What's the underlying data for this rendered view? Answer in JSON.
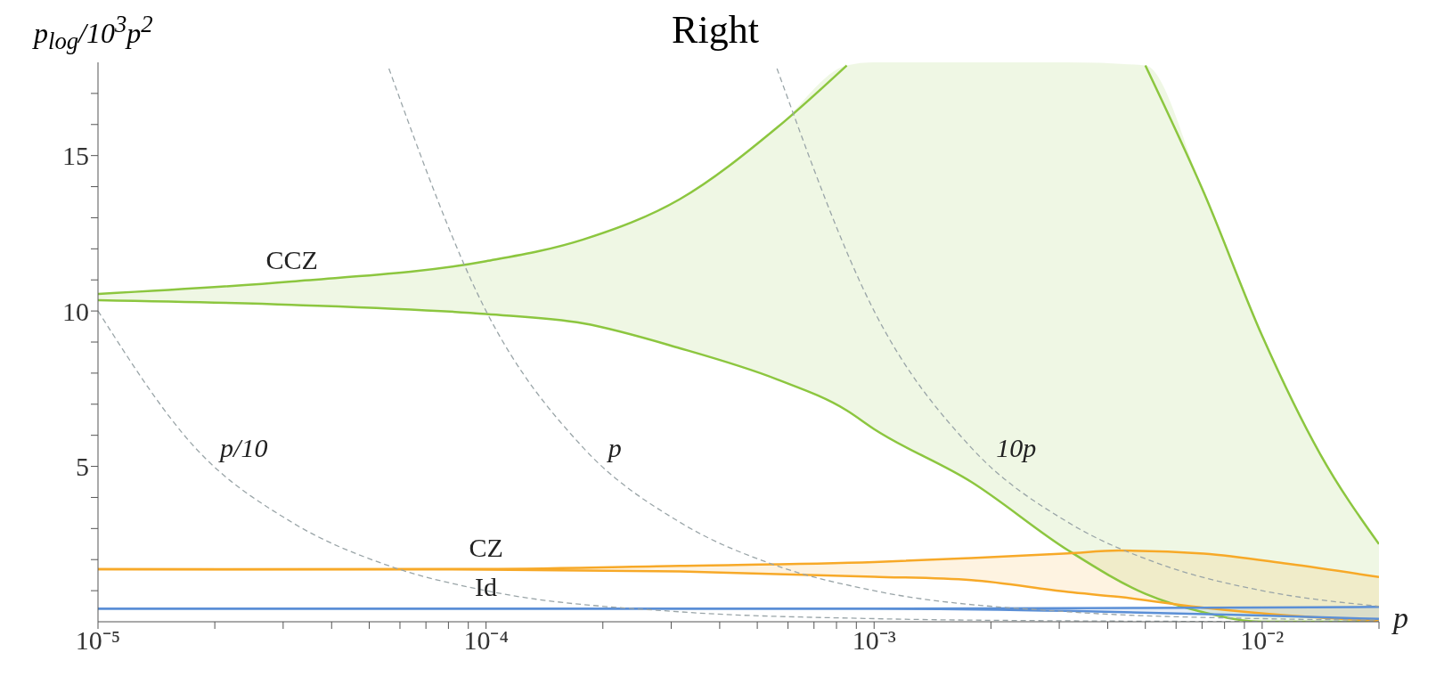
{
  "chart_data": {
    "type": "line",
    "title": "Right",
    "xlabel": "p",
    "ylabel": "p$_{log}$/10$^{3}$p$^{2}$",
    "log": "x",
    "xlim": [
      1e-05,
      0.02
    ],
    "ylim": [
      0,
      18
    ],
    "xticks": [
      {
        "value": 1e-05,
        "label": "10⁻⁵"
      },
      {
        "value": 2e-05,
        "label": null
      },
      {
        "value": 3e-05,
        "label": null
      },
      {
        "value": 4e-05,
        "label": null
      },
      {
        "value": 5e-05,
        "label": null
      },
      {
        "value": 6e-05,
        "label": null
      },
      {
        "value": 7e-05,
        "label": null
      },
      {
        "value": 8e-05,
        "label": null
      },
      {
        "value": 9e-05,
        "label": null
      },
      {
        "value": 0.0001,
        "label": "10⁻⁴"
      },
      {
        "value": 0.0002,
        "label": null
      },
      {
        "value": 0.0003,
        "label": null
      },
      {
        "value": 0.0004,
        "label": null
      },
      {
        "value": 0.0005,
        "label": null
      },
      {
        "value": 0.0006,
        "label": null
      },
      {
        "value": 0.0007,
        "label": null
      },
      {
        "value": 0.0008,
        "label": null
      },
      {
        "value": 0.0009,
        "label": null
      },
      {
        "value": 0.001,
        "label": "10⁻³"
      },
      {
        "value": 0.002,
        "label": null
      },
      {
        "value": 0.003,
        "label": null
      },
      {
        "value": 0.004,
        "label": null
      },
      {
        "value": 0.005,
        "label": null
      },
      {
        "value": 0.006,
        "label": null
      },
      {
        "value": 0.007,
        "label": null
      },
      {
        "value": 0.008,
        "label": null
      },
      {
        "value": 0.009,
        "label": null
      },
      {
        "value": 0.01,
        "label": "10⁻²"
      },
      {
        "value": 0.02,
        "label": null
      }
    ],
    "yticks": [
      {
        "value": 1,
        "label": null
      },
      {
        "value": 2,
        "label": null
      },
      {
        "value": 3,
        "label": null
      },
      {
        "value": 4,
        "label": null
      },
      5,
      {
        "value": 6,
        "label": null
      },
      {
        "value": 7,
        "label": null
      },
      {
        "value": 8,
        "label": null
      },
      {
        "value": 9,
        "label": null
      },
      10,
      {
        "value": 11,
        "label": null
      },
      {
        "value": 12,
        "label": null
      },
      {
        "value": 13,
        "label": null
      },
      {
        "value": 14,
        "label": null
      },
      15,
      {
        "value": 16,
        "label": null
      },
      {
        "value": 17,
        "label": null
      }
    ],
    "series": [
      {
        "name": "CCZ",
        "color": "#8cc63f",
        "x": [
          1e-05,
          3.16e-05,
          0.0001,
          0.000178,
          0.000316,
          0.000562,
          0.00085,
          0.001,
          0.00178,
          0.00316,
          0.005,
          0.00708,
          0.01,
          0.0141,
          0.02
        ],
        "values": [
          10.55,
          10.95,
          11.6,
          12.3,
          13.6,
          15.9,
          17.9,
          null,
          null,
          null,
          17.9,
          13.8,
          9.2,
          5.4,
          2.5
        ],
        "lower": [
          10.35,
          10.2,
          9.9,
          9.6,
          8.8,
          7.8,
          6.8,
          6.2,
          4.5,
          2.3,
          0.9,
          0.3,
          0,
          0,
          0
        ],
        "upper": [
          10.55,
          10.95,
          11.6,
          12.3,
          13.6,
          15.9,
          17.9,
          18,
          18,
          18,
          17.9,
          13.8,
          9.2,
          5.4,
          2.5
        ]
      },
      {
        "color": "#8cc63f",
        "x": [
          1e-05,
          3.16e-05,
          0.0001,
          0.000178,
          0.000316,
          0.000562,
          0.00085,
          0.001,
          0.00178,
          0.00316,
          0.005,
          0.00708,
          0.01,
          0.0141,
          0.02
        ],
        "values": [
          10.35,
          10.2,
          9.9,
          9.6,
          8.8,
          7.8,
          6.8,
          6.2,
          4.5,
          2.3,
          0.9,
          0.3,
          0,
          0,
          0
        ]
      },
      {
        "name": "CZ",
        "color": "#f7a928",
        "x": [
          1e-05,
          0.0001,
          0.000316,
          0.001,
          0.00178,
          0.00316,
          0.00427,
          0.00708,
          0.0117,
          0.02
        ],
        "values": [
          1.69,
          1.7,
          1.8,
          1.92,
          2.05,
          2.2,
          2.29,
          2.19,
          1.86,
          1.44
        ],
        "lower": [
          1.69,
          1.68,
          1.62,
          1.45,
          1.34,
          0.96,
          0.8,
          0.45,
          0.2,
          0.03
        ],
        "upper": [
          1.69,
          1.7,
          1.8,
          1.92,
          2.05,
          2.2,
          2.29,
          2.19,
          1.86,
          1.44
        ]
      },
      {
        "color": "#f7a928",
        "x": [
          1e-05,
          0.0001,
          0.000316,
          0.001,
          0.00178,
          0.00316,
          0.00427,
          0.00708,
          0.0117,
          0.02
        ],
        "values": [
          1.69,
          1.68,
          1.62,
          1.45,
          1.34,
          0.96,
          0.8,
          0.45,
          0.2,
          0.03
        ]
      },
      {
        "name": "Id",
        "color": "#5b8fd6",
        "x": [
          1e-05,
          0.0001,
          0.001,
          0.00316,
          0.01,
          0.02
        ],
        "values": [
          0.42,
          0.42,
          0.42,
          0.44,
          0.46,
          0.48
        ],
        "lower": [
          0.42,
          0.42,
          0.42,
          0.35,
          0.2,
          0.09
        ],
        "upper": [
          0.42,
          0.42,
          0.42,
          0.44,
          0.46,
          0.48
        ]
      },
      {
        "color": "#5b8fd6",
        "x": [
          1e-05,
          0.0001,
          0.001,
          0.00316,
          0.01,
          0.02
        ],
        "values": [
          0.42,
          0.42,
          0.42,
          0.35,
          0.2,
          0.09
        ]
      },
      {
        "name": "p/10",
        "color": "#9aa5a8",
        "line_style": "dashed",
        "x": [
          1e-05,
          1.78e-05,
          3.16e-05,
          5.62e-05,
          0.0001,
          0.000316,
          0.001,
          0.00316,
          0.01,
          0.02
        ],
        "values": [
          10,
          5.6,
          3.2,
          1.8,
          1,
          0.32,
          0.1,
          0.03,
          0.01,
          0.01
        ]
      },
      {
        "name": "p",
        "color": "#9aa5a8",
        "line_style": "dashed",
        "x": [
          5.62e-05,
          0.0001,
          0.000178,
          0.000316,
          0.000562,
          0.001,
          0.00316,
          0.01,
          0.02
        ],
        "values": [
          17.8,
          10,
          5.6,
          3.2,
          1.8,
          1,
          0.32,
          0.1,
          0.05
        ]
      },
      {
        "name": "10p",
        "color": "#9aa5a8",
        "line_style": "dashed",
        "x": [
          0.000562,
          0.001,
          0.00178,
          0.00316,
          0.00562,
          0.01,
          0.02
        ],
        "values": [
          17.8,
          10,
          5.6,
          3.2,
          1.8,
          1,
          0.5
        ]
      }
    ]
  }
}
